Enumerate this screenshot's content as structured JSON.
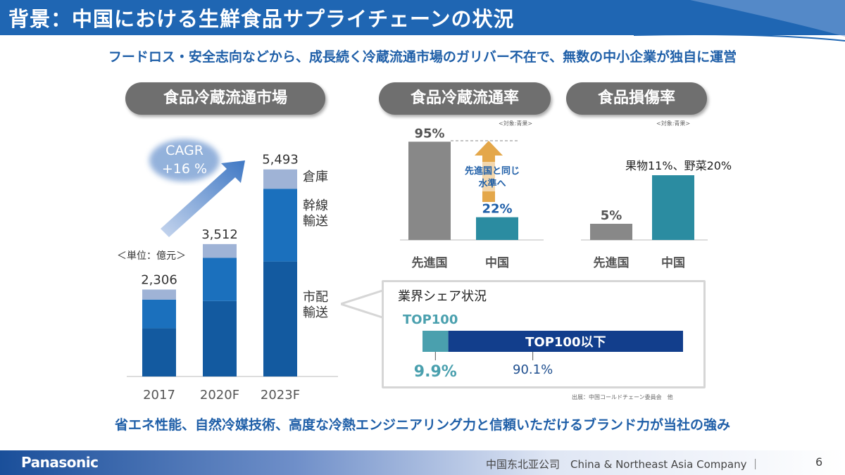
{
  "header": {
    "title": "背景：中国における生鮮食品サプライチェーンの状況"
  },
  "subtitle": "フードロス・安全志向などから、成長続く冷蔵流通市場のガリバー不在で、無数の中小企業が独自に運営",
  "sections": {
    "market": "食品冷蔵流通市場",
    "rate": "食品冷蔵流通率",
    "damage": "食品損傷率"
  },
  "colors": {
    "header_blue": "#1f66b3",
    "bar_dark": "#135aa0",
    "bar_mid": "#1b70bd",
    "bar_light": "#9fb3d6",
    "gray_bar": "#888888",
    "teal_bar": "#2b8ca1",
    "share_teal": "#4aa0ae",
    "share_navy": "#123e8c"
  },
  "chart_data": [
    {
      "type": "bar",
      "stacked": true,
      "title": "食品冷蔵流通市場",
      "unit_label": "＜単位：億元＞",
      "categories": [
        "2017",
        "2020F",
        "2023F"
      ],
      "totals": [
        2306,
        3512,
        5493
      ],
      "total_labels": [
        "2,306",
        "3,512",
        "5,493"
      ],
      "series": [
        {
          "name": "市配輸送",
          "values": [
            1280,
            2000,
            3050
          ]
        },
        {
          "name": "幹線輸送",
          "values": [
            760,
            1150,
            1930
          ]
        },
        {
          "name": "倉庫",
          "values": [
            266,
            362,
            513
          ]
        }
      ],
      "segment_labels": [
        "倉庫",
        "幹線\n輸送",
        "市配\n輸送"
      ],
      "cagr": {
        "line1": "CAGR",
        "line2": "+16 %"
      },
      "ylim": [
        0,
        5600
      ]
    },
    {
      "type": "bar",
      "title": "食品冷蔵流通率",
      "note": "<対象:青果>",
      "categories": [
        "先進国",
        "中国"
      ],
      "values": [
        95,
        22
      ],
      "value_labels": [
        "95%",
        "22%"
      ],
      "annotation": {
        "line1": "先進国と同じ",
        "line2": "水準へ"
      },
      "ylim": [
        0,
        100
      ]
    },
    {
      "type": "bar",
      "title": "食品損傷率",
      "note": "<対象:青果>",
      "categories": [
        "先進国",
        "中国"
      ],
      "values": [
        5,
        20
      ],
      "value_labels": [
        "5%",
        ""
      ],
      "annotation": "果物11%、野菜20%",
      "ylim": [
        0,
        25
      ]
    },
    {
      "type": "bar",
      "orientation": "horizontal",
      "stacked": true,
      "title": "業界シェア状況",
      "series": [
        {
          "name": "TOP100",
          "value": 9.9,
          "label": "9.9%"
        },
        {
          "name": "TOP100以下",
          "value": 90.1,
          "label": "90.1%"
        }
      ],
      "xlim": [
        0,
        100
      ]
    }
  ],
  "source": "出展：中国コールドチェーン委員会　他",
  "bottom_message": "省エネ性能、自然冷媒技術、高度な冷熱エンジニアリング力と信頼いただけるブランド力が当社の強み",
  "footer": {
    "logo": "Panasonic",
    "company": "中国东北亚公司　China & Northeast Asia Company ｜",
    "page_number": "6"
  }
}
